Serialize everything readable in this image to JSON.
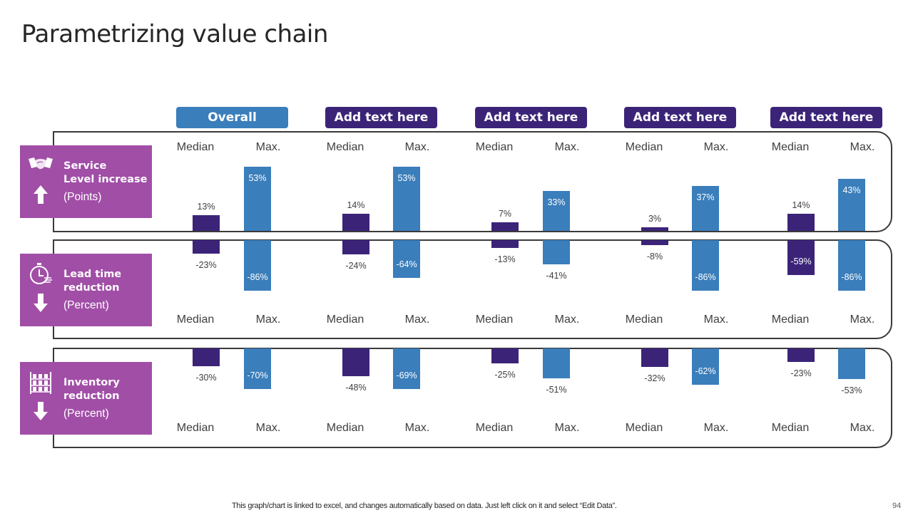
{
  "slide": {
    "title": "Parametrizing value chain",
    "footer_note": "This graph/chart is linked to excel,  and changes automatically based on data. Just left click on it and select “Edit Data”.",
    "page_number": "94"
  },
  "colors": {
    "median": "#3b2478",
    "max": "#3a7ebb",
    "overall_tab": "#3a7ebb",
    "group_tab": "#3b2478",
    "category_card": "#a14ea7",
    "border": "#3a3a3a"
  },
  "columns": [
    {
      "label": "Overall",
      "style": "overall"
    },
    {
      "label": "Add text here",
      "style": "group"
    },
    {
      "label": "Add text here",
      "style": "group"
    },
    {
      "label": "Add text here",
      "style": "group"
    },
    {
      "label": "Add text here",
      "style": "group"
    }
  ],
  "bar_labels": {
    "median": "Median",
    "max": "Max."
  },
  "categories": [
    {
      "name": "Service Level increase",
      "name_lines": [
        "Service",
        "Level increase"
      ],
      "unit": "(Points)",
      "icon": "handshake-icon",
      "direction": "up-arrow-icon"
    },
    {
      "name": "Lead time reduction",
      "name_lines": [
        "Lead time",
        "reduction"
      ],
      "unit": "(Percent)",
      "icon": "stopwatch-icon",
      "direction": "down-arrow-icon"
    },
    {
      "name": "Inventory reduction",
      "name_lines": [
        "Inventory",
        "reduction"
      ],
      "unit": "(Percent)",
      "icon": "warehouse-shelf-icon",
      "direction": "down-arrow-icon"
    }
  ],
  "chart_data": {
    "type": "bar",
    "title": "Parametrizing value chain",
    "categories": [
      "Overall",
      "Add text here",
      "Add text here",
      "Add text here",
      "Add text here"
    ],
    "panels": [
      {
        "name": "Service Level increase (Points)",
        "direction": "up",
        "series": [
          {
            "name": "Median",
            "values": [
              13,
              14,
              7,
              3,
              14
            ],
            "labels": [
              "13%",
              "14%",
              "7%",
              "3%",
              "14%"
            ]
          },
          {
            "name": "Max.",
            "values": [
              53,
              53,
              33,
              37,
              43
            ],
            "labels": [
              "53%",
              "53%",
              "33%",
              "37%",
              "43%"
            ]
          }
        ]
      },
      {
        "name": "Lead time reduction (Percent)",
        "direction": "down",
        "series": [
          {
            "name": "Median",
            "values": [
              -23,
              -24,
              -13,
              -8,
              -59
            ],
            "labels": [
              "-23%",
              "-24%",
              "-13%",
              "-8%",
              "-59%"
            ]
          },
          {
            "name": "Max.",
            "values": [
              -86,
              -64,
              -41,
              -86,
              -86
            ],
            "labels": [
              "-86%",
              "-64%",
              "-41%",
              "-86%",
              "-86%"
            ]
          }
        ]
      },
      {
        "name": "Inventory reduction (Percent)",
        "direction": "down",
        "series": [
          {
            "name": "Median",
            "values": [
              -30,
              -48,
              -25,
              -32,
              -23
            ],
            "labels": [
              "-30%",
              "-48%",
              "-25%",
              "-32%",
              "-23%"
            ]
          },
          {
            "name": "Max.",
            "values": [
              -70,
              -69,
              -51,
              -62,
              -53
            ],
            "labels": [
              "-70%",
              "-69%",
              "-51%",
              "-62%",
              "-53%"
            ]
          }
        ]
      }
    ],
    "xlabel": "",
    "ylabel": "",
    "grid": false,
    "legend": "none"
  }
}
